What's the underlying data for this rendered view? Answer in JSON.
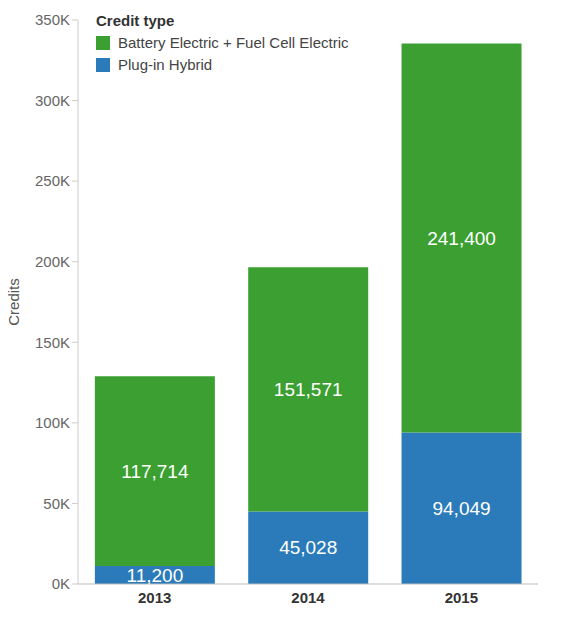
{
  "chart_data": {
    "type": "bar",
    "stacked": true,
    "data_labels": true,
    "grid": false,
    "legend": "upper left",
    "legend_title": "Credit type",
    "y_label": "Credits",
    "categories": [
      "2013",
      "2014",
      "2015"
    ],
    "series": [
      {
        "name": "Battery Electric + Fuel Cell Electric",
        "color": "#3b9f32",
        "values": [
          117714,
          151571,
          241400
        ],
        "value_labels": [
          "117,714",
          "151,571",
          "241,400"
        ]
      },
      {
        "name": "Plug-in Hybrid",
        "color": "#2b7bba",
        "values": [
          11200,
          45028,
          94049
        ],
        "value_labels": [
          "11,200",
          "45,028",
          "94,049"
        ]
      }
    ],
    "ylim": [
      0,
      350000
    ],
    "yticks": [
      {
        "value": 0,
        "label": "0K"
      },
      {
        "value": 50000,
        "label": "50K"
      },
      {
        "value": 100000,
        "label": "100K"
      },
      {
        "value": 150000,
        "label": "150K"
      },
      {
        "value": 200000,
        "label": "200K"
      },
      {
        "value": 250000,
        "label": "250K"
      },
      {
        "value": 300000,
        "label": "300K"
      },
      {
        "value": 350000,
        "label": "350K"
      }
    ]
  }
}
